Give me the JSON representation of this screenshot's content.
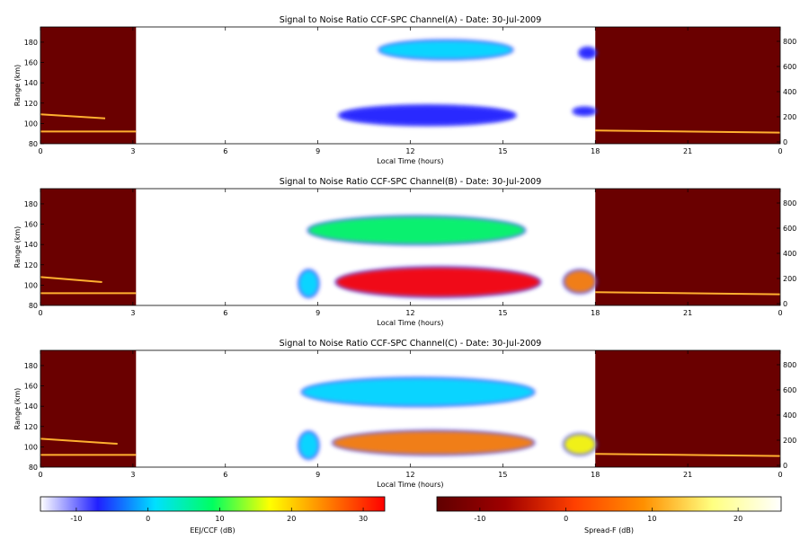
{
  "chart_data": [
    {
      "type": "heatmap",
      "title": "Signal to Noise Ratio CCF-SPC Channel(A) - Date: 30-Jul-2009",
      "xlabel": "Local Time (hours)",
      "ylabel": "Range (km)",
      "xlim": [
        0,
        24
      ],
      "ylim": [
        80,
        195
      ],
      "xticks": [
        "0",
        "3",
        "6",
        "9",
        "12",
        "15",
        "18",
        "21",
        "0"
      ],
      "yticks": [
        "80",
        "100",
        "120",
        "140",
        "160",
        "180"
      ],
      "right_ticks": [
        "0",
        "200",
        "400",
        "600",
        "800"
      ],
      "night_shading": [
        [
          0,
          3.1
        ],
        [
          18,
          24
        ]
      ],
      "blobs": [
        {
          "x0": 11.0,
          "x1": 15.3,
          "y0": 163,
          "y1": 182,
          "snr_db": -3
        },
        {
          "x0": 9.7,
          "x1": 15.4,
          "y0": 98,
          "y1": 118,
          "snr_db": -4
        },
        {
          "x0": 17.5,
          "x1": 18.0,
          "y0": 164,
          "y1": 175,
          "snr_db": -6
        },
        {
          "x0": 17.3,
          "x1": 18.0,
          "y0": 108,
          "y1": 116,
          "snr_db": -7
        }
      ],
      "night_traces": [
        {
          "x": [
            0,
            3.1
          ],
          "y": [
            92,
            92
          ]
        },
        {
          "x": [
            0,
            2.1
          ],
          "y": [
            109,
            105
          ]
        },
        {
          "x": [
            18,
            24
          ],
          "y": [
            93,
            91
          ]
        }
      ]
    },
    {
      "type": "heatmap",
      "title": "Signal to Noise Ratio CCF-SPC Channel(B) - Date: 30-Jul-2009",
      "xlabel": "Local Time (hours)",
      "ylabel": "Range (km)",
      "xlim": [
        0,
        24
      ],
      "ylim": [
        80,
        195
      ],
      "xticks": [
        "0",
        "3",
        "6",
        "9",
        "12",
        "15",
        "18",
        "21",
        "0"
      ],
      "yticks": [
        "80",
        "100",
        "120",
        "140",
        "160",
        "180"
      ],
      "right_ticks": [
        "0",
        "200",
        "400",
        "600",
        "800"
      ],
      "night_shading": [
        [
          0,
          3.1
        ],
        [
          18,
          24
        ]
      ],
      "blobs": [
        {
          "x0": 9.6,
          "x1": 16.2,
          "y0": 88,
          "y1": 118,
          "snr_db": 30
        },
        {
          "x0": 8.4,
          "x1": 9.0,
          "y0": 88,
          "y1": 115,
          "snr_db": 2
        },
        {
          "x0": 17.0,
          "x1": 18.0,
          "y0": 92,
          "y1": 115,
          "snr_db": 22
        },
        {
          "x0": 8.7,
          "x1": 15.7,
          "y0": 140,
          "y1": 168,
          "snr_db": 6
        }
      ],
      "night_traces": [
        {
          "x": [
            0,
            3.1
          ],
          "y": [
            92,
            92
          ]
        },
        {
          "x": [
            0,
            2.0
          ],
          "y": [
            108,
            103
          ]
        },
        {
          "x": [
            18,
            24
          ],
          "y": [
            93,
            91
          ]
        }
      ]
    },
    {
      "type": "heatmap",
      "title": "Signal to Noise Ratio CCF-SPC Channel(C) - Date: 30-Jul-2009",
      "xlabel": "Local Time (hours)",
      "ylabel": "Range (km)",
      "xlim": [
        0,
        24
      ],
      "ylim": [
        80,
        195
      ],
      "xticks": [
        "0",
        "3",
        "6",
        "9",
        "12",
        "15",
        "18",
        "21",
        "0"
      ],
      "yticks": [
        "80",
        "100",
        "120",
        "140",
        "160",
        "180"
      ],
      "right_ticks": [
        "0",
        "200",
        "400",
        "600",
        "800"
      ],
      "night_shading": [
        [
          0,
          3.1
        ],
        [
          18,
          24
        ]
      ],
      "blobs": [
        {
          "x0": 9.5,
          "x1": 16.0,
          "y0": 92,
          "y1": 116,
          "snr_db": 28
        },
        {
          "x0": 8.4,
          "x1": 9.0,
          "y0": 88,
          "y1": 115,
          "snr_db": 2
        },
        {
          "x0": 17.0,
          "x1": 18.0,
          "y0": 92,
          "y1": 113,
          "snr_db": 20
        },
        {
          "x0": 8.5,
          "x1": 16.0,
          "y0": 140,
          "y1": 168,
          "snr_db": 4
        }
      ],
      "night_traces": [
        {
          "x": [
            0,
            3.1
          ],
          "y": [
            92,
            92
          ]
        },
        {
          "x": [
            0,
            2.5
          ],
          "y": [
            108,
            103
          ]
        },
        {
          "x": [
            18,
            24
          ],
          "y": [
            93,
            91
          ]
        }
      ]
    }
  ],
  "colorbars": [
    {
      "label": "EEJ/CCF (dB)",
      "range": [
        -15,
        33
      ],
      "ticks": [
        "-10",
        "0",
        "10",
        "20",
        "30"
      ],
      "tick_values": [
        -10,
        0,
        10,
        20,
        30
      ],
      "colors": [
        "#ffffff",
        "#2020ff",
        "#00e0ff",
        "#00ff60",
        "#ffff00",
        "#ff8000",
        "#ff0000"
      ]
    },
    {
      "label": "Spread-F (dB)",
      "range": [
        -15,
        25
      ],
      "ticks": [
        "-10",
        "0",
        "10",
        "20"
      ],
      "tick_values": [
        -10,
        0,
        10,
        20
      ],
      "colors": [
        "#600000",
        "#a00000",
        "#ff4000",
        "#ff9000",
        "#ffff80",
        "#ffffff"
      ]
    }
  ],
  "colors": {
    "night_bg": "#6a0000",
    "night_trace": "#ffb030"
  }
}
